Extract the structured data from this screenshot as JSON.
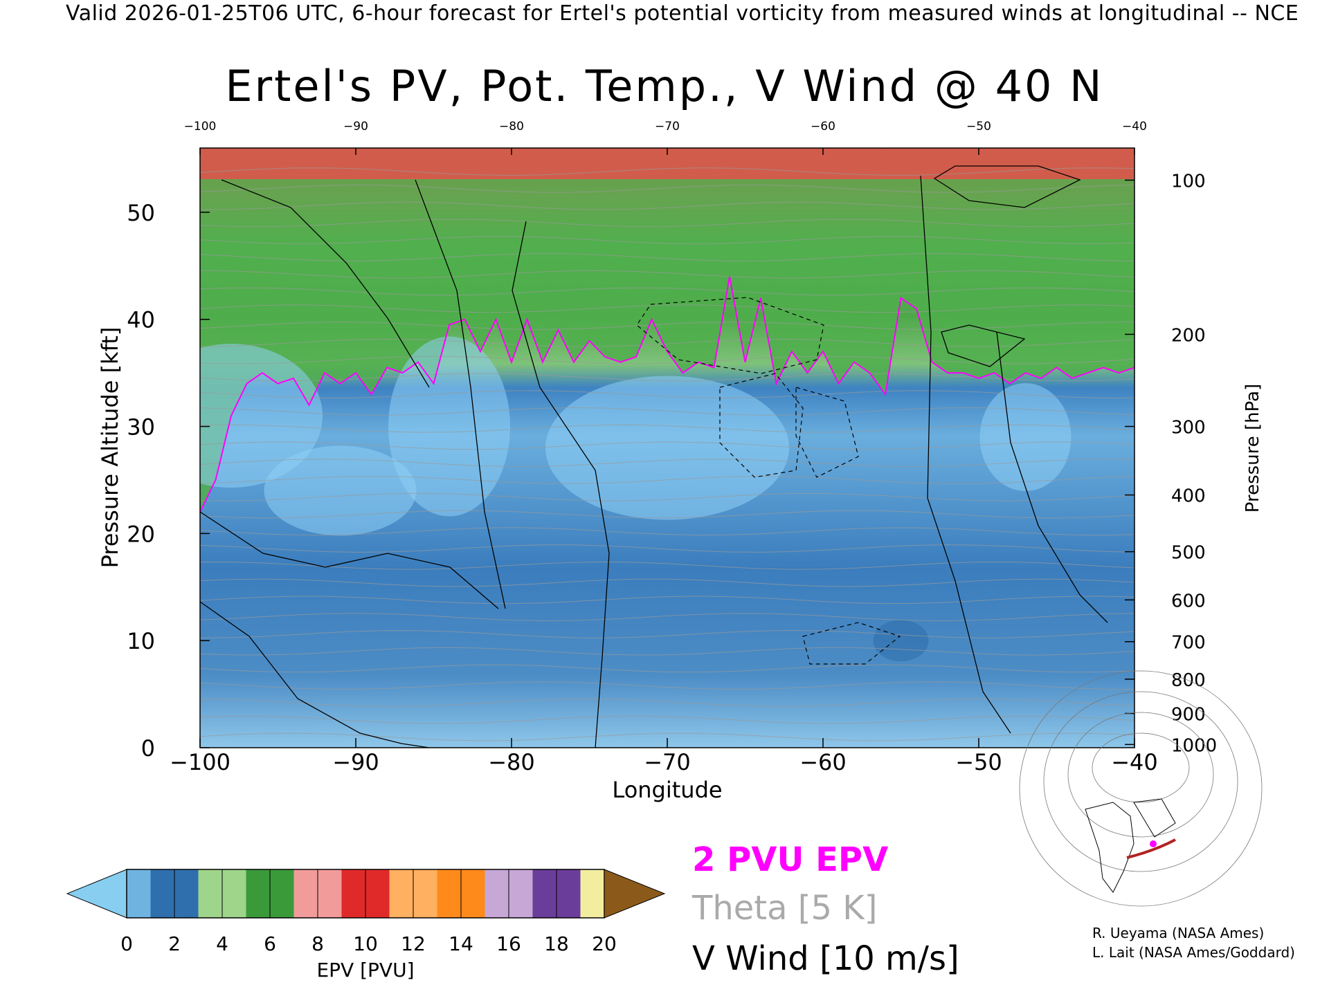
{
  "header": {
    "banner": "Valid 2026-01-25T06 UTC, 6-hour forecast for Ertel's potential vorticity from measured winds at longitudinal -- NCE",
    "title": "Ertel's PV, Pot. Temp., V Wind @ 40 N"
  },
  "chart_data": {
    "type": "heatmap",
    "title": "Ertel's PV, Pot. Temp., V Wind @ 40 N",
    "xlabel": "Longitude",
    "ylabel_left": "Pressure Altitude [kft]",
    "ylabel_right": "Pressure [hPa]",
    "xlim": [
      -100,
      -40
    ],
    "ylim": [
      0,
      56
    ],
    "x_ticks": [
      "−100",
      "−90",
      "−80",
      "−70",
      "−60",
      "−50",
      "−40"
    ],
    "x_tick_values": [
      -100,
      -90,
      -80,
      -70,
      -60,
      -50,
      -40
    ],
    "top_ticks": [
      "−100",
      "−90",
      "−80",
      "−70",
      "−60",
      "−50",
      "−40"
    ],
    "y_ticks": [
      "0",
      "10",
      "20",
      "30",
      "40",
      "50"
    ],
    "y_tick_values": [
      0,
      10,
      20,
      30,
      40,
      50
    ],
    "pressure_ticks": [
      {
        "label": "100",
        "kft": 53.0
      },
      {
        "label": "200",
        "kft": 38.6
      },
      {
        "label": "300",
        "kft": 30.0
      },
      {
        "label": "400",
        "kft": 23.6
      },
      {
        "label": "500",
        "kft": 18.3
      },
      {
        "label": "600",
        "kft": 13.8
      },
      {
        "label": "700",
        "kft": 9.9
      },
      {
        "label": "800",
        "kft": 6.4
      },
      {
        "label": "900",
        "kft": 3.2
      },
      {
        "label": "1000",
        "kft": 0.3
      }
    ],
    "tropopause_2pvu_kft": [
      {
        "lon": -100,
        "kft": 22.0
      },
      {
        "lon": -99,
        "kft": 25.0
      },
      {
        "lon": -98,
        "kft": 31.0
      },
      {
        "lon": -97,
        "kft": 34.0
      },
      {
        "lon": -96,
        "kft": 35.0
      },
      {
        "lon": -95,
        "kft": 34.0
      },
      {
        "lon": -94,
        "kft": 34.5
      },
      {
        "lon": -93,
        "kft": 32.0
      },
      {
        "lon": -92,
        "kft": 35.0
      },
      {
        "lon": -91,
        "kft": 34.0
      },
      {
        "lon": -90,
        "kft": 35.0
      },
      {
        "lon": -89,
        "kft": 33.0
      },
      {
        "lon": -88,
        "kft": 35.5
      },
      {
        "lon": -87,
        "kft": 35.0
      },
      {
        "lon": -86,
        "kft": 36.0
      },
      {
        "lon": -85,
        "kft": 34.0
      },
      {
        "lon": -84,
        "kft": 39.5
      },
      {
        "lon": -83,
        "kft": 40.0
      },
      {
        "lon": -82,
        "kft": 37.0
      },
      {
        "lon": -81,
        "kft": 40.0
      },
      {
        "lon": -80,
        "kft": 36.0
      },
      {
        "lon": -79,
        "kft": 40.0
      },
      {
        "lon": -78,
        "kft": 36.0
      },
      {
        "lon": -77,
        "kft": 39.0
      },
      {
        "lon": -76,
        "kft": 36.0
      },
      {
        "lon": -75,
        "kft": 38.0
      },
      {
        "lon": -74,
        "kft": 36.5
      },
      {
        "lon": -73,
        "kft": 36.0
      },
      {
        "lon": -72,
        "kft": 36.5
      },
      {
        "lon": -71,
        "kft": 40.0
      },
      {
        "lon": -70,
        "kft": 37.0
      },
      {
        "lon": -69,
        "kft": 35.0
      },
      {
        "lon": -68,
        "kft": 36.0
      },
      {
        "lon": -67,
        "kft": 35.5
      },
      {
        "lon": -66,
        "kft": 44.0
      },
      {
        "lon": -65,
        "kft": 36.0
      },
      {
        "lon": -64,
        "kft": 42.0
      },
      {
        "lon": -63,
        "kft": 34.0
      },
      {
        "lon": -62,
        "kft": 37.0
      },
      {
        "lon": -61,
        "kft": 35.0
      },
      {
        "lon": -60,
        "kft": 37.0
      },
      {
        "lon": -59,
        "kft": 34.0
      },
      {
        "lon": -58,
        "kft": 36.0
      },
      {
        "lon": -57,
        "kft": 35.0
      },
      {
        "lon": -56,
        "kft": 33.0
      },
      {
        "lon": -55,
        "kft": 42.0
      },
      {
        "lon": -54,
        "kft": 41.0
      },
      {
        "lon": -53,
        "kft": 36.0
      },
      {
        "lon": -52,
        "kft": 35.0
      },
      {
        "lon": -51,
        "kft": 35.0
      },
      {
        "lon": -50,
        "kft": 34.5
      },
      {
        "lon": -49,
        "kft": 35.0
      },
      {
        "lon": -48,
        "kft": 34.0
      },
      {
        "lon": -47,
        "kft": 35.0
      },
      {
        "lon": -46,
        "kft": 34.5
      },
      {
        "lon": -45,
        "kft": 35.5
      },
      {
        "lon": -44,
        "kft": 34.5
      },
      {
        "lon": -43,
        "kft": 35.0
      },
      {
        "lon": -42,
        "kft": 35.5
      },
      {
        "lon": -41,
        "kft": 35.0
      },
      {
        "lon": -40,
        "kft": 35.5
      }
    ],
    "colorbar": {
      "label": "EPV [PVU]",
      "tick_labels": [
        "0",
        "2",
        "4",
        "6",
        "8",
        "10",
        "12",
        "14",
        "16",
        "18",
        "20"
      ],
      "colors": [
        "#6fb3e0",
        "#2f6fae",
        "#9fd58a",
        "#3a9a3a",
        "#f29b9b",
        "#e02a2a",
        "#ffb060",
        "#ff8a1c",
        "#c6a7d6",
        "#6b3d9b",
        "#f3eda0",
        "#8b5a1a"
      ],
      "under_color": "#87cef0",
      "over_color": "#8b5a1a"
    },
    "legend": [
      {
        "label": "2 PVU EPV",
        "color": "#ff00ff"
      },
      {
        "label": "Theta [5 K]",
        "color": "#aaaaaa"
      },
      {
        "label": "V Wind [10 m/s]",
        "color": "#000000"
      }
    ]
  },
  "credits": {
    "line1": "R. Ueyama (NASA Ames)",
    "line2": "L. Lait (NASA Ames/Goddard)"
  }
}
